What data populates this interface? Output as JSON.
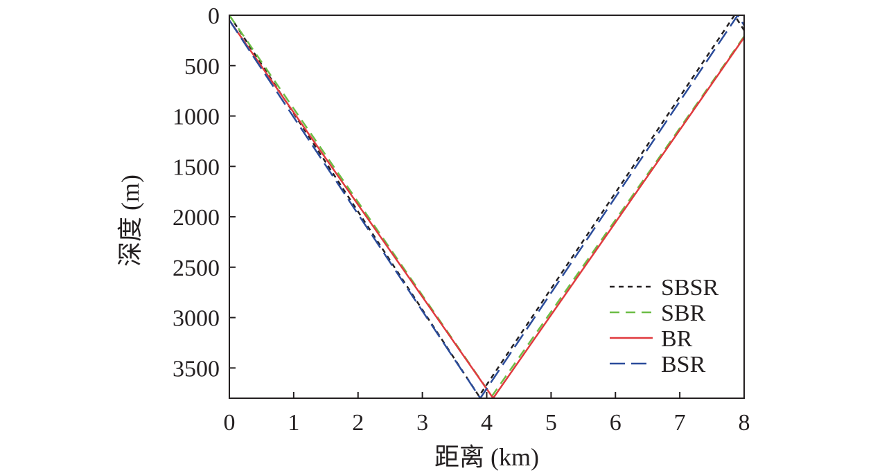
{
  "chart_data": {
    "type": "line",
    "xlabel": "距离 (km)",
    "ylabel": "深度 (m)",
    "xlim": [
      0,
      8
    ],
    "ylim": [
      0,
      3800
    ],
    "y_inverted": true,
    "xticks": [
      0,
      1,
      2,
      3,
      4,
      5,
      6,
      7,
      8
    ],
    "yticks": [
      0,
      500,
      1000,
      1500,
      2000,
      2500,
      3000,
      3500
    ],
    "grid": false,
    "legend_position": "bottom-right",
    "series": [
      {
        "name": "SBSR",
        "color": "#231f20",
        "style": "dotted",
        "x": [
          0.0,
          3.88,
          7.85,
          8.0
        ],
        "y": [
          0,
          3780,
          0,
          150
        ]
      },
      {
        "name": "SBR",
        "color": "#6cbd45",
        "style": "dashed",
        "x": [
          0.0,
          4.08,
          8.0
        ],
        "y": [
          0,
          3780,
          210
        ]
      },
      {
        "name": "BR",
        "color": "#e03a3e",
        "style": "solid",
        "x": [
          0.0,
          4.1,
          8.0
        ],
        "y": [
          50,
          3800,
          220
        ]
      },
      {
        "name": "BSR",
        "color": "#2b4c9b",
        "style": "longdash",
        "x": [
          0.0,
          3.9,
          7.9,
          8.0
        ],
        "y": [
          50,
          3800,
          0,
          100
        ]
      }
    ]
  }
}
